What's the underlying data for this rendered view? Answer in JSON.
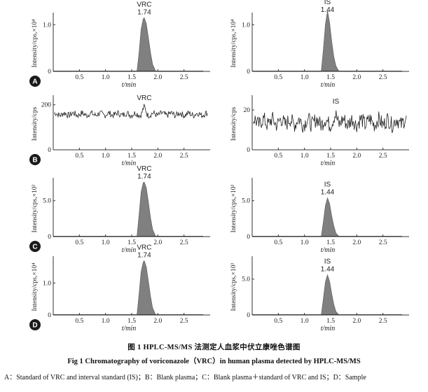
{
  "chart_data": [
    {
      "type": "line",
      "panel": "A",
      "label": "A",
      "peak_name": "VRC",
      "peak_time": "1.74",
      "peak_at": 1.74,
      "width": 0.16,
      "ylabel": "Intensity/cps,×10⁴",
      "ymax": 1.2,
      "yticks": [
        0,
        1.0
      ],
      "ytick_labels": [
        "0",
        "1.0"
      ],
      "xlabel": "t/min",
      "xlim": [
        0,
        3.0
      ],
      "xticks": [
        0.5,
        1.0,
        1.5,
        2.0,
        2.5
      ],
      "xtick_labels": [
        "0.5",
        "1.0",
        "1.5",
        "2.0",
        "2.5"
      ],
      "x": [
        1.6,
        1.64,
        1.68,
        1.72,
        1.74,
        1.78,
        1.82,
        1.86,
        1.9,
        1.96
      ],
      "values": [
        0.0,
        0.4,
        0.9,
        1.12,
        1.15,
        1.02,
        0.72,
        0.4,
        0.15,
        0.0
      ]
    },
    {
      "type": "line",
      "panel": "A",
      "label": "",
      "peak_name": "IS",
      "peak_time": "1.44",
      "peak_at": 1.44,
      "width": 0.14,
      "ylabel": "Intensity/cps,×10⁴",
      "ymax": 1.2,
      "yticks": [
        0,
        1.0
      ],
      "ytick_labels": [
        "0",
        "1.0"
      ],
      "xlabel": "t/min",
      "xlim": [
        0,
        3.0
      ],
      "xticks": [
        0.5,
        1.0,
        1.5,
        2.0,
        2.5
      ],
      "xtick_labels": [
        "0.5",
        "1.0",
        "1.5",
        "2.0",
        "2.5"
      ],
      "x": [
        1.32,
        1.36,
        1.4,
        1.44,
        1.48,
        1.52,
        1.56,
        1.6,
        1.66
      ],
      "values": [
        0.0,
        0.45,
        1.0,
        1.3,
        1.05,
        0.65,
        0.32,
        0.12,
        0.0
      ]
    },
    {
      "type": "line",
      "panel": "B",
      "label": "B",
      "peak_name": "VRC",
      "peak_time": "",
      "peak_at": 1.74,
      "noise": true,
      "base": 158,
      "amp": 14,
      "spike": 30,
      "ylabel": "Intensity/cps",
      "ymax": 230,
      "yticks": [
        0,
        200
      ],
      "ytick_labels": [
        "0",
        "200"
      ],
      "xlabel": "t/min",
      "xlim": [
        0,
        3.0
      ],
      "xticks": [
        0.5,
        1.0,
        1.5,
        2.0,
        2.5
      ],
      "xtick_labels": [
        "0.5",
        "1.0",
        "1.5",
        "2.0",
        "2.5"
      ]
    },
    {
      "type": "line",
      "panel": "B",
      "label": "",
      "peak_name": "IS",
      "peak_time": "",
      "peak_at": 1.6,
      "noise": true,
      "base": 14,
      "amp": 4,
      "spike": 3,
      "ylabel": "Intensity/cps",
      "ymax": 26,
      "yticks": [
        0,
        20
      ],
      "ytick_labels": [
        "0",
        "20"
      ],
      "xlabel": "t/min",
      "xlim": [
        0,
        3.0
      ],
      "xticks": [
        0.5,
        1.0,
        1.5,
        2.0,
        2.5
      ],
      "xtick_labels": [
        "0.5",
        "1.0",
        "1.5",
        "2.0",
        "2.5"
      ]
    },
    {
      "type": "line",
      "panel": "C",
      "label": "C",
      "peak_name": "VRC",
      "peak_time": "1.74",
      "peak_at": 1.74,
      "width": 0.16,
      "ylabel": "Intensity/cps,×10³",
      "ymax": 7.8,
      "yticks": [
        0,
        5.0
      ],
      "ytick_labels": [
        "0",
        "5.0"
      ],
      "xlabel": "t/min",
      "xlim": [
        0,
        3.0
      ],
      "xticks": [
        0.5,
        1.0,
        1.5,
        2.0,
        2.5
      ],
      "xtick_labels": [
        "0.5",
        "1.0",
        "1.5",
        "2.0",
        "2.5"
      ],
      "x": [
        1.6,
        1.64,
        1.68,
        1.72,
        1.74,
        1.78,
        1.82,
        1.86,
        1.9,
        1.96
      ],
      "values": [
        0.0,
        3.0,
        6.2,
        7.5,
        7.6,
        6.8,
        4.8,
        2.6,
        1.0,
        0.0
      ]
    },
    {
      "type": "line",
      "panel": "C",
      "label": "",
      "peak_name": "IS",
      "peak_time": "1.44",
      "peak_at": 1.44,
      "width": 0.14,
      "ylabel": "Intensity/cps,×10³",
      "ymax": 7.8,
      "yticks": [
        0,
        5.0
      ],
      "ytick_labels": [
        "0",
        "5.0"
      ],
      "xlabel": "t/min",
      "xlim": [
        0,
        3.0
      ],
      "xticks": [
        0.5,
        1.0,
        1.5,
        2.0,
        2.5
      ],
      "xtick_labels": [
        "0.5",
        "1.0",
        "1.5",
        "2.0",
        "2.5"
      ],
      "x": [
        1.32,
        1.36,
        1.4,
        1.44,
        1.48,
        1.52,
        1.56,
        1.6,
        1.66
      ],
      "values": [
        0.0,
        2.0,
        4.3,
        5.4,
        4.6,
        2.9,
        1.5,
        0.5,
        0.0
      ]
    },
    {
      "type": "line",
      "panel": "D",
      "label": "D",
      "peak_name": "VRC",
      "peak_time": "1.74",
      "peak_at": 1.74,
      "width": 0.16,
      "ylabel": "Intensity/cps,×10⁴",
      "ymax": 1.75,
      "yticks": [
        0,
        1.0
      ],
      "ytick_labels": [
        "0",
        "1.0"
      ],
      "xlabel": "t/min",
      "xlim": [
        0,
        3.0
      ],
      "xticks": [
        0.5,
        1.0,
        1.5,
        2.0,
        2.5
      ],
      "xtick_labels": [
        "0.5",
        "1.0",
        "1.5",
        "2.0",
        "2.5"
      ],
      "x": [
        1.6,
        1.64,
        1.68,
        1.72,
        1.74,
        1.78,
        1.82,
        1.86,
        1.9,
        1.96
      ],
      "values": [
        0.0,
        0.65,
        1.35,
        1.65,
        1.7,
        1.5,
        1.05,
        0.58,
        0.22,
        0.0
      ]
    },
    {
      "type": "line",
      "panel": "D",
      "label": "",
      "peak_name": "IS",
      "peak_time": "1.44",
      "peak_at": 1.44,
      "width": 0.14,
      "ylabel": "Intensity/cps,×10³",
      "ymax": 7.8,
      "yticks": [
        0,
        5.0
      ],
      "ytick_labels": [
        "0",
        "5.0"
      ],
      "xlabel": "t/min",
      "xlim": [
        0,
        3.0
      ],
      "xticks": [
        0.5,
        1.0,
        1.5,
        2.0,
        2.5
      ],
      "xtick_labels": [
        "0.5",
        "1.0",
        "1.5",
        "2.0",
        "2.5"
      ],
      "x": [
        1.32,
        1.36,
        1.4,
        1.44,
        1.48,
        1.52,
        1.56,
        1.6,
        1.66
      ],
      "values": [
        0.0,
        2.2,
        4.6,
        5.6,
        4.7,
        3.0,
        1.5,
        0.5,
        0.0
      ]
    }
  ],
  "caption": {
    "cn": "图 1  HPLC-MS/MS 法测定人血浆中伏立康唑色谱图",
    "en": "Fig 1   Chromatography of voriconazole（VRC）in human plasma detected by HPLC-MS/MS",
    "note": "A：Standard of VRC and interval standard (IS)；B：Blank plasma；C：Blank plasma＋standard of VRC and IS；D：Sample"
  },
  "colors": {
    "axis": "#333333",
    "fill": "#808080",
    "line": "#222222",
    "badge": "#1a1a1a"
  }
}
